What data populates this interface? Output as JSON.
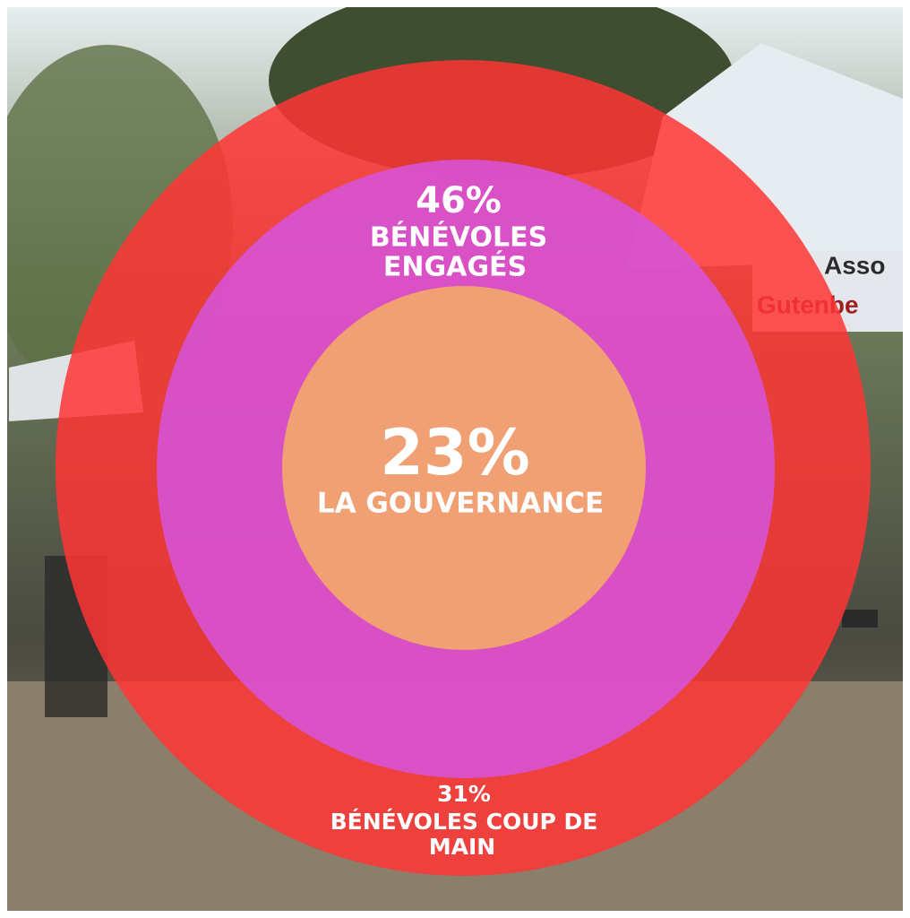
{
  "background_sign": {
    "line1": "Asso",
    "line2": "Gutenbe"
  },
  "rings": [
    {
      "percent": "46%",
      "label_lines": [
        "BÉNÉVOLES",
        "ENGAGÉS"
      ]
    },
    {
      "percent": "23%",
      "label_lines": [
        "LA GOUVERNANCE"
      ]
    },
    {
      "percent": "31%",
      "label_lines": [
        "BÉNÉVOLES COUP DE",
        "MAIN"
      ]
    }
  ]
}
